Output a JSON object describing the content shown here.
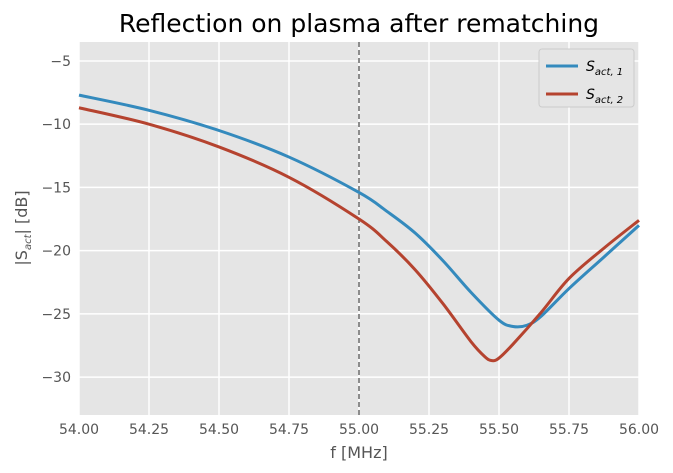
{
  "chart_data": {
    "type": "line",
    "title": "Reflection on plasma after rematching",
    "xlabel": "f [MHz]",
    "ylabel_main": "|S",
    "ylabel_sub": "act",
    "ylabel_tail": "| [dB]",
    "xlim": [
      54.0,
      56.0
    ],
    "ylim": [
      -33.0,
      -3.5
    ],
    "xticks": [
      54.0,
      54.25,
      54.5,
      54.75,
      55.0,
      55.25,
      55.5,
      55.75,
      56.0
    ],
    "xtick_labels": [
      "54.00",
      "54.25",
      "54.50",
      "54.75",
      "55.00",
      "55.25",
      "55.50",
      "55.75",
      "56.00"
    ],
    "yticks": [
      -5,
      -10,
      -15,
      -20,
      -25,
      -30
    ],
    "ytick_labels": [
      "−5",
      "−10",
      "−15",
      "−20",
      "−25",
      "−30"
    ],
    "grid": true,
    "legend_position": "top-right",
    "vline": {
      "x": 55.0,
      "style": "dashed",
      "color": "#808080"
    },
    "series": [
      {
        "name": "S",
        "name_sub": "act, 1",
        "color": "#348ABD",
        "x": [
          54.0,
          54.25,
          54.5,
          54.75,
          55.0,
          55.1,
          55.2,
          55.3,
          55.4,
          55.5,
          55.55,
          55.6,
          55.65,
          55.75,
          55.875,
          56.0
        ],
        "y": [
          -7.7,
          -8.9,
          -10.5,
          -12.6,
          -15.4,
          -16.9,
          -18.6,
          -20.8,
          -23.3,
          -25.5,
          -26.0,
          -25.9,
          -25.2,
          -23.0,
          -20.5,
          -18.0
        ]
      },
      {
        "name": "S",
        "name_sub": "act, 2",
        "color": "#B5432F",
        "x": [
          54.0,
          54.25,
          54.5,
          54.75,
          55.0,
          55.1,
          55.2,
          55.3,
          55.4,
          55.45,
          55.475,
          55.5,
          55.55,
          55.65,
          55.75,
          55.875,
          56.0
        ],
        "y": [
          -8.7,
          -10.0,
          -11.8,
          -14.2,
          -17.5,
          -19.3,
          -21.5,
          -24.2,
          -27.2,
          -28.4,
          -28.7,
          -28.5,
          -27.4,
          -24.9,
          -22.2,
          -19.8,
          -17.6
        ]
      }
    ]
  }
}
